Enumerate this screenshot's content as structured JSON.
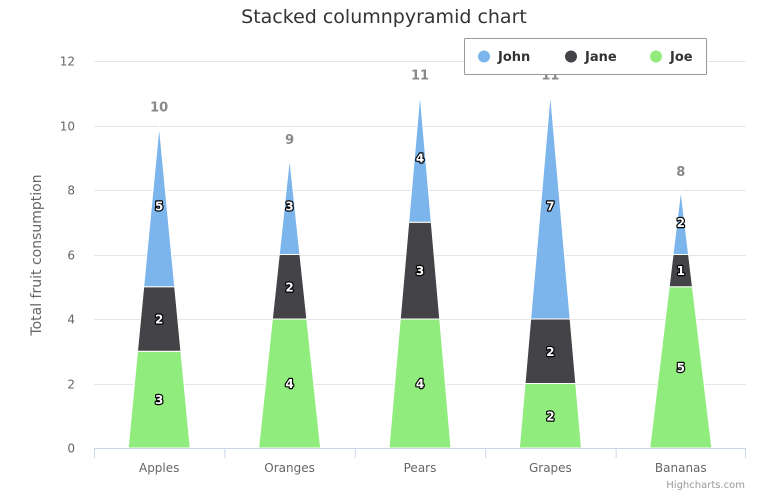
{
  "chart_data": {
    "type": "bar",
    "subtype": "stacked-columnpyramid",
    "title": "Stacked columnpyramid chart",
    "xlabel": "",
    "ylabel": "Total fruit consumption",
    "categories": [
      "Apples",
      "Oranges",
      "Pears",
      "Grapes",
      "Bananas"
    ],
    "series": [
      {
        "name": "John",
        "values": [
          5,
          3,
          4,
          7,
          2
        ],
        "color": "#7cb5ec"
      },
      {
        "name": "Jane",
        "values": [
          2,
          2,
          3,
          2,
          1
        ],
        "color": "#434348"
      },
      {
        "name": "Joe",
        "values": [
          3,
          4,
          4,
          2,
          5
        ],
        "color": "#90ed7d"
      }
    ],
    "stack_totals": [
      "10",
      "9",
      "11",
      "11",
      "8"
    ],
    "ylim": [
      0,
      12
    ],
    "yticks": [
      "0",
      "2",
      "4",
      "6",
      "8",
      "10",
      "12"
    ],
    "grid": true,
    "legend_position": "top-right",
    "credits": "Highcharts.com"
  }
}
